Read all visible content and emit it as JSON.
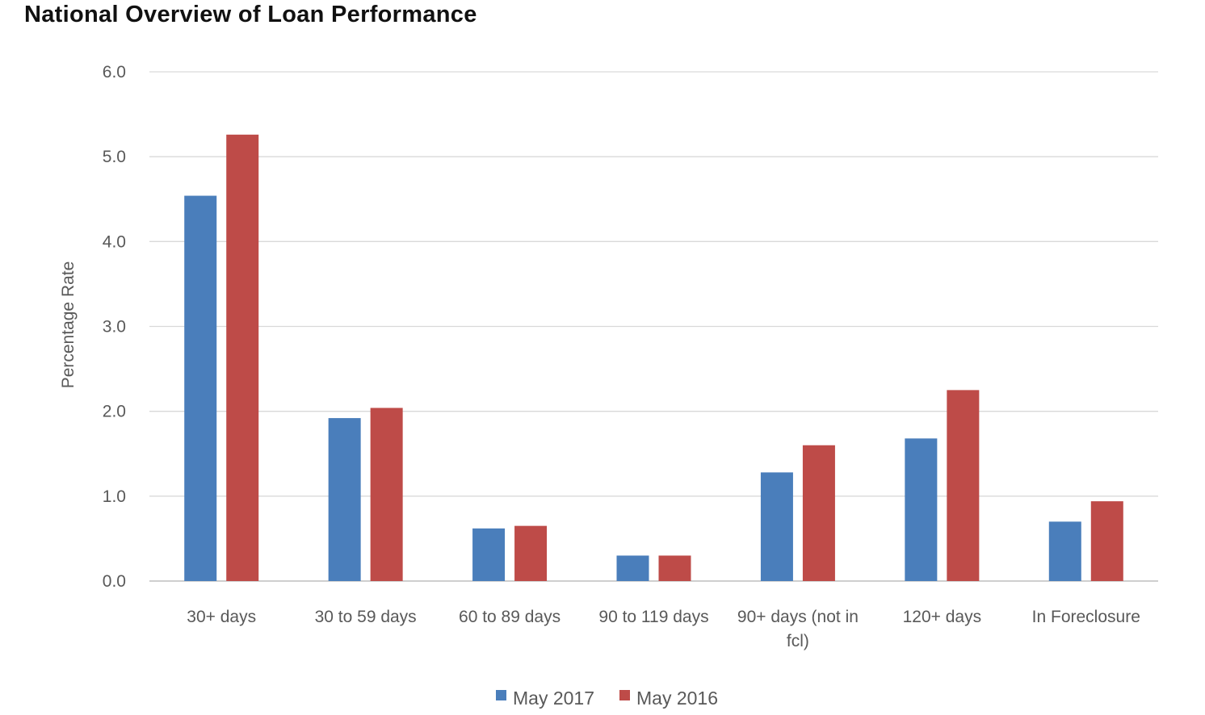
{
  "chart_data": {
    "type": "bar",
    "title": "National Overview of Loan Performance",
    "xlabel": "",
    "ylabel": "Percentage Rate",
    "ylim": [
      0,
      6
    ],
    "yticks": [
      "0.0",
      "1.0",
      "2.0",
      "3.0",
      "4.0",
      "5.0",
      "6.0"
    ],
    "grid": true,
    "legend_position": "bottom",
    "categories": [
      [
        "30+ days"
      ],
      [
        "30 to 59 days"
      ],
      [
        "60 to 89 days"
      ],
      [
        "90 to 119 days"
      ],
      [
        "90+ days (not in",
        "fcl)"
      ],
      [
        "120+ days"
      ],
      [
        "In Foreclosure"
      ]
    ],
    "series": [
      {
        "name": "May 2017",
        "color": "#4a7ebb",
        "values": [
          4.54,
          1.92,
          0.62,
          0.3,
          1.28,
          1.68,
          0.7
        ]
      },
      {
        "name": "May 2016",
        "color": "#be4b48",
        "values": [
          5.26,
          2.04,
          0.65,
          0.3,
          1.6,
          2.25,
          0.94
        ]
      }
    ]
  }
}
